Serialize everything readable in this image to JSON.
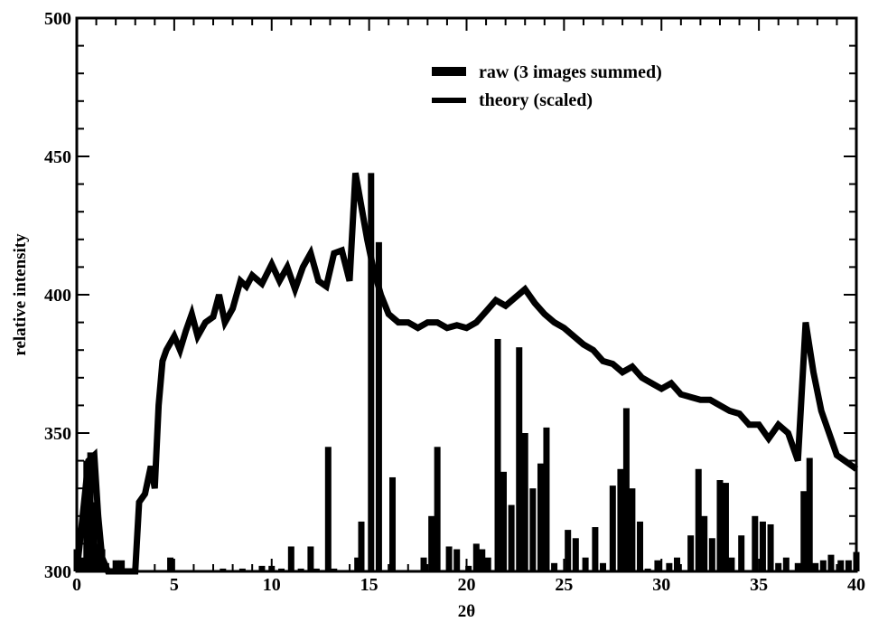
{
  "chart_data": {
    "type": "line",
    "title": "",
    "xlabel": "2θ",
    "ylabel": "relative intensity",
    "xlim": [
      0,
      40
    ],
    "ylim": [
      300,
      500
    ],
    "x_ticks": [
      0,
      5,
      10,
      15,
      20,
      25,
      30,
      35,
      40
    ],
    "y_ticks": [
      300,
      350,
      400,
      450,
      500
    ],
    "x_tick_labels": [
      "0",
      "5",
      "10",
      "15",
      "20",
      "25",
      "30",
      "35",
      "40"
    ],
    "y_tick_labels": [
      "300",
      "350",
      "400",
      "450",
      "500"
    ],
    "grid": false,
    "legend_position": "top-right",
    "colors": {
      "series": "#000000",
      "background": "#ffffff"
    },
    "series": [
      {
        "name": "raw (3 images summed)",
        "style": "bars",
        "x": [
          0.0,
          0.3,
          0.5,
          0.7,
          0.9,
          1.1,
          1.3,
          1.5,
          1.7,
          2.0,
          2.3,
          2.6,
          3.0,
          4.8,
          7.5,
          8.5,
          9.5,
          10.0,
          10.5,
          11.0,
          11.5,
          12.0,
          12.3,
          12.9,
          13.2,
          14.4,
          14.6,
          15.1,
          15.5,
          16.2,
          17.8,
          18.2,
          18.5,
          19.1,
          19.5,
          20.1,
          20.5,
          20.8,
          21.1,
          21.6,
          21.9,
          22.3,
          22.7,
          23.0,
          23.4,
          23.8,
          24.1,
          24.5,
          25.2,
          25.6,
          26.1,
          26.6,
          27.0,
          27.5,
          27.9,
          28.2,
          28.5,
          28.9,
          29.3,
          29.8,
          30.4,
          30.8,
          31.5,
          31.9,
          32.2,
          32.6,
          33.0,
          33.3,
          33.6,
          34.1,
          34.8,
          35.2,
          35.6,
          36.0,
          36.4,
          37.0,
          37.3,
          37.6,
          37.9,
          38.3,
          38.7,
          39.2,
          39.6,
          40.0
        ],
        "values": [
          308,
          305,
          340,
          343,
          325,
          310,
          308,
          303,
          300,
          304,
          304,
          300,
          300,
          305,
          301,
          301,
          302,
          302,
          301,
          309,
          301,
          309,
          301,
          345,
          301,
          305,
          318,
          444,
          419,
          334,
          305,
          320,
          345,
          309,
          308,
          302,
          310,
          308,
          305,
          384,
          336,
          324,
          381,
          350,
          330,
          339,
          352,
          303,
          315,
          312,
          305,
          316,
          303,
          331,
          337,
          359,
          330,
          318,
          301,
          304,
          303,
          305,
          313,
          337,
          320,
          312,
          333,
          332,
          305,
          313,
          320,
          318,
          317,
          303,
          305,
          303,
          329,
          341,
          303,
          304,
          306,
          304,
          304,
          307
        ]
      },
      {
        "name": "theory (scaled)",
        "style": "line",
        "x": [
          0.0,
          0.3,
          0.6,
          0.9,
          1.1,
          1.3,
          1.6,
          1.9,
          2.2,
          2.5,
          2.8,
          3.0,
          3.2,
          3.5,
          3.8,
          4.0,
          4.2,
          4.4,
          4.6,
          5.0,
          5.3,
          5.6,
          5.9,
          6.2,
          6.6,
          7.0,
          7.3,
          7.6,
          8.0,
          8.4,
          8.7,
          9.0,
          9.5,
          10.0,
          10.4,
          10.8,
          11.2,
          11.6,
          12.0,
          12.4,
          12.8,
          13.2,
          13.6,
          14.0,
          14.3,
          14.6,
          14.9,
          15.2,
          15.6,
          16.0,
          16.5,
          17.0,
          17.5,
          18.0,
          18.5,
          19.0,
          19.5,
          20.0,
          20.5,
          21.0,
          21.5,
          22.0,
          22.5,
          23.0,
          23.5,
          24.0,
          24.5,
          25.0,
          25.5,
          26.0,
          26.5,
          27.0,
          27.5,
          28.0,
          28.5,
          29.0,
          29.5,
          30.0,
          30.5,
          31.0,
          31.5,
          32.0,
          32.5,
          33.0,
          33.5,
          34.0,
          34.5,
          35.0,
          35.5,
          36.0,
          36.5,
          37.0,
          37.4,
          37.8,
          38.2,
          38.6,
          39.0,
          39.4,
          39.8,
          40.0
        ],
        "values": [
          300,
          320,
          340,
          342,
          320,
          305,
          300,
          300,
          300,
          300,
          300,
          300,
          325,
          328,
          338,
          330,
          360,
          376,
          380,
          385,
          380,
          387,
          393,
          385,
          390,
          392,
          400,
          390,
          395,
          405,
          403,
          407,
          404,
          411,
          405,
          410,
          402,
          410,
          415,
          405,
          403,
          415,
          416,
          405,
          444,
          432,
          420,
          410,
          400,
          393,
          390,
          390,
          388,
          390,
          390,
          388,
          389,
          388,
          390,
          394,
          398,
          396,
          399,
          402,
          397,
          393,
          390,
          388,
          385,
          382,
          380,
          376,
          375,
          372,
          374,
          370,
          368,
          366,
          368,
          364,
          363,
          362,
          362,
          360,
          358,
          357,
          353,
          353,
          348,
          353,
          350,
          340,
          390,
          372,
          358,
          350,
          342,
          340,
          338,
          337
        ]
      }
    ]
  }
}
